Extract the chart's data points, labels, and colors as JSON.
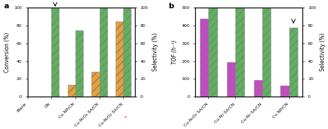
{
  "panel_a": {
    "categories": [
      "Blank",
      "CN",
      "Cu NP/CN",
      "Cu-N₁O₂ SA/CN",
      "Cu-N₁O₂ SA/CN"
    ],
    "last_label_asterisk": true,
    "conversion": [
      0,
      0,
      13,
      28,
      85
    ],
    "selectivity": [
      0,
      100,
      75,
      100,
      100
    ],
    "conversion_color": "#e8a035",
    "selectivity_color": "#5db35d",
    "ylabel_left": "Conversion (%)",
    "ylabel_right": "Selectivity (%)",
    "ylim_left": [
      0,
      100
    ],
    "ylim_right": [
      0,
      100
    ],
    "yticks_left": [
      0,
      20,
      40,
      60,
      80,
      100
    ],
    "yticks_right": [
      0,
      20,
      40,
      60,
      80,
      100
    ],
    "label": "a",
    "cn_arrow": true
  },
  "panel_b": {
    "categories": [
      "Cu-N₁O₂ SA/CN",
      "Cu-N₂ SA/CN",
      "Cu-N₃ SA/CN",
      "Cu NP/CN"
    ],
    "tof": [
      440,
      193,
      93,
      60
    ],
    "selectivity": [
      100,
      100,
      100,
      78
    ],
    "tof_color": "#cc44cc",
    "selectivity_color": "#5db35d",
    "ylabel_left": "TOF (h⁻¹)",
    "ylabel_right": "Selectivity (%)",
    "ylim_left": [
      0,
      500
    ],
    "ylim_right": [
      0,
      100
    ],
    "yticks_left": [
      0,
      100,
      200,
      300,
      400,
      500
    ],
    "yticks_right": [
      0,
      20,
      40,
      60,
      80,
      100
    ],
    "label": "b"
  },
  "bar_width": 0.32,
  "hatch": "///",
  "hatch_lw": 0.5
}
